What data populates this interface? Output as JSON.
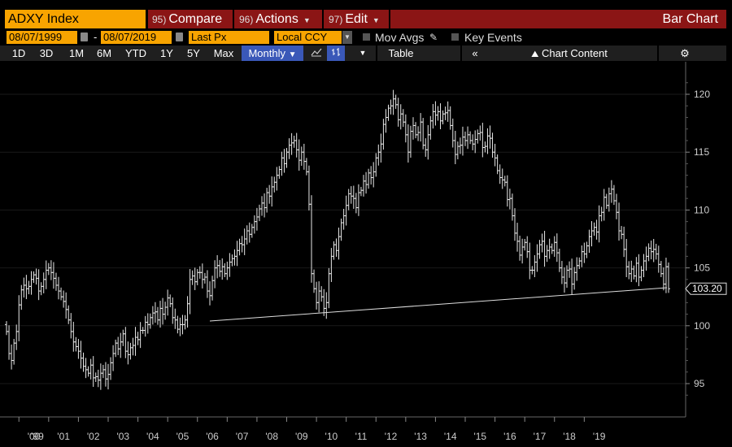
{
  "toolbar1": {
    "ticker": "ADXY Index",
    "menus": [
      {
        "num": "95)",
        "label": "Compare"
      },
      {
        "num": "96)",
        "label": "Actions"
      },
      {
        "num": "97)",
        "label": "Edit"
      }
    ],
    "title": "Bar Chart"
  },
  "toolbar2": {
    "start_date": "08/07/1999",
    "end_date": "08/07/2019",
    "field": "Last Px",
    "currency": "Local CCY",
    "mov_avgs": "Mov Avgs",
    "key_events": "Key Events"
  },
  "toolbar3": {
    "periods": [
      "1D",
      "3D",
      "1M",
      "6M",
      "YTD",
      "1Y",
      "5Y",
      "Max"
    ],
    "frequency": "Monthly",
    "table": "Table",
    "chart_content": "Chart Content"
  },
  "colors": {
    "accent": "#f8a400",
    "menu_red": "#8b1515",
    "active_blue": "#3a58b8"
  },
  "chart_data": {
    "type": "bar",
    "style": "ohlc-monthly",
    "ylim": [
      93.5,
      121.5
    ],
    "yticks": [
      95,
      100,
      105,
      110,
      115,
      120
    ],
    "xticks": [
      "'99",
      "'00",
      "'01",
      "'02",
      "'03",
      "'04",
      "'05",
      "'06",
      "'07",
      "'08",
      "'09",
      "'10",
      "'11",
      "'12",
      "'13",
      "'14",
      "'15",
      "'16",
      "'17",
      "'18",
      "'19"
    ],
    "last_value": "103.20",
    "series": [
      {
        "x_start": "1999-08",
        "frequency": "monthly",
        "close": [
          99.5,
          97.6,
          97.0,
          98.5,
          99.5,
          101.8,
          103.1,
          103.5,
          103.2,
          103.4,
          104.0,
          104.4,
          104.1,
          103.0,
          103.4,
          104.0,
          104.8,
          105.0,
          104.6,
          104.1,
          103.5,
          103.0,
          102.5,
          102.1,
          101.4,
          100.5,
          99.5,
          98.6,
          98.2,
          97.8,
          97.2,
          96.5,
          96.2,
          95.9,
          96.6,
          95.5,
          95.6,
          95.3,
          95.9,
          96.2,
          95.4,
          95.8,
          96.8,
          97.6,
          98.5,
          98.0,
          98.6,
          99.3,
          97.8,
          97.5,
          98.1,
          98.3,
          99.0,
          98.8,
          99.6,
          99.6,
          100.3,
          100.1,
          100.7,
          101.1,
          101.2,
          100.5,
          101.5,
          101.0,
          101.6,
          102.4,
          101.9,
          100.7,
          100.5,
          99.7,
          100.1,
          100.1,
          100.5,
          101.9,
          104.0,
          104.3,
          103.8,
          104.6,
          104.6,
          104.0,
          104.2,
          103.0,
          102.6,
          103.9,
          105.0,
          105.2,
          104.7,
          105.1,
          104.5,
          105.0,
          105.5,
          105.8,
          106.0,
          106.5,
          107.1,
          107.0,
          107.5,
          108.2,
          107.9,
          108.5,
          109.0,
          109.4,
          110.1,
          110.6,
          110.2,
          111.5,
          111.2,
          112.0,
          112.4,
          113.0,
          113.5,
          114.5,
          114.0,
          115.0,
          115.6,
          115.8,
          116.0,
          115.2,
          114.3,
          115.0,
          114.2,
          113.3,
          110.5,
          104.5,
          103.2,
          102.0,
          103.0,
          102.5,
          101.5,
          102.0,
          104.5,
          106.0,
          107.0,
          106.5,
          107.7,
          108.9,
          109.5,
          110.4,
          111.4,
          111.2,
          111.0,
          110.2,
          111.5,
          111.7,
          112.5,
          112.2,
          113.2,
          112.8,
          113.3,
          114.5,
          115.0,
          115.7,
          117.4,
          118.0,
          118.8,
          119.0,
          119.6,
          119.1,
          117.8,
          118.3,
          117.6,
          116.5,
          115.0,
          116.8,
          117.3,
          116.5,
          116.7,
          117.6,
          115.6,
          115.2,
          116.5,
          117.7,
          118.5,
          118.2,
          118.5,
          117.7,
          118.3,
          118.4,
          118.6,
          117.3,
          116.0,
          114.8,
          115.5,
          115.6,
          116.3,
          116.0,
          116.5,
          116.0,
          115.7,
          116.1,
          116.6,
          116.7,
          115.4,
          115.5,
          116.4,
          116.2,
          115.0,
          114.5,
          113.4,
          112.8,
          112.6,
          112.4,
          110.9,
          111.0,
          109.5,
          108.0,
          107.3,
          106.1,
          106.8,
          107.2,
          106.4,
          104.8,
          104.8,
          105.5,
          106.2,
          107.0,
          107.3,
          106.0,
          106.5,
          106.8,
          106.5,
          107.2,
          106.3,
          105.0,
          104.2,
          103.7,
          104.8,
          104.9,
          103.6,
          104.6,
          105.2,
          105.6,
          106.4,
          106.2,
          106.9,
          107.7,
          108.2,
          108.5,
          108.1,
          109.5,
          109.8,
          111.1,
          110.4,
          111.4,
          111.8,
          110.8,
          109.8,
          108.2,
          107.9,
          106.6,
          105.1,
          104.5,
          104.9,
          104.3,
          105.4,
          104.2,
          104.8,
          105.6,
          106.0,
          106.7,
          106.4,
          106.6,
          106.2,
          105.3,
          104.5,
          103.6,
          105.1,
          103.2
        ]
      }
    ]
  }
}
